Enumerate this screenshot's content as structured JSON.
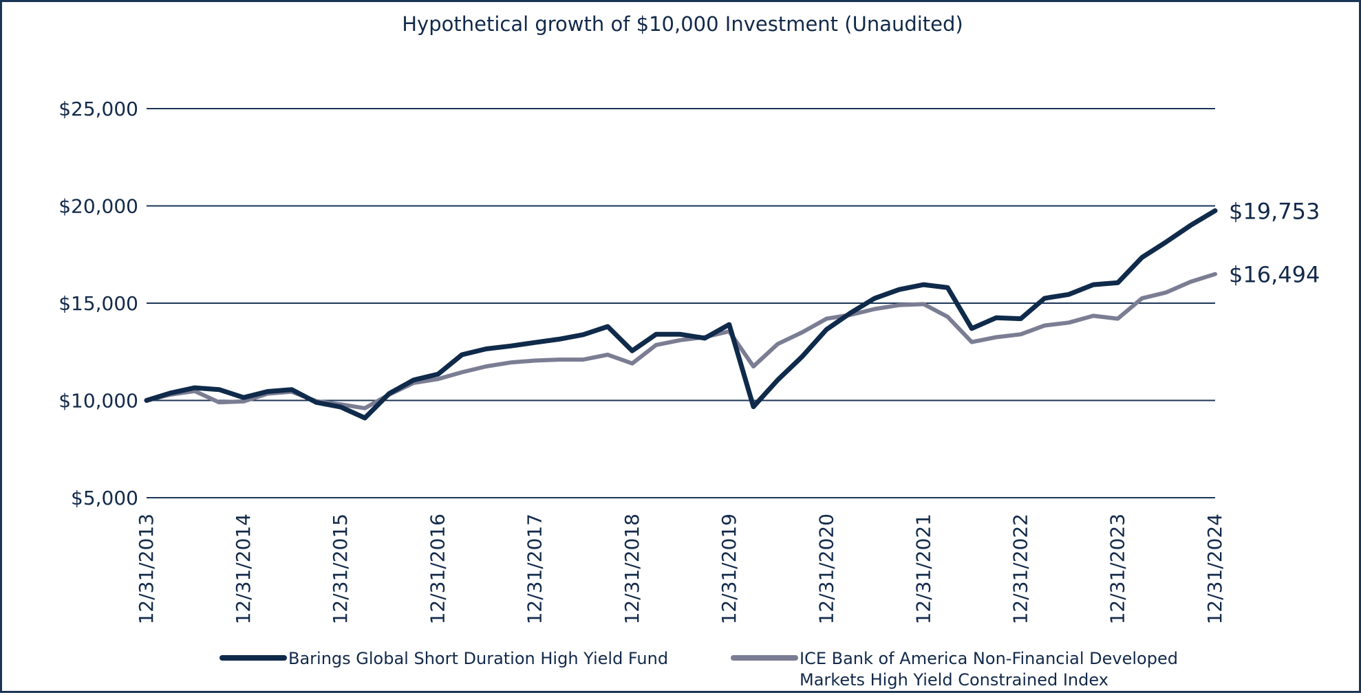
{
  "chart_data": {
    "type": "line",
    "title": "Hypothetical growth of $10,000 Investment (Unaudited)",
    "xlabel": "",
    "ylabel": "",
    "ylim": [
      5000,
      25000
    ],
    "y_ticks": [
      "$5,000",
      "$10,000",
      "$15,000",
      "$20,000",
      "$25,000"
    ],
    "y_tick_values": [
      5000,
      10000,
      15000,
      20000,
      25000
    ],
    "x_ticks": [
      "12/31/2013",
      "12/31/2014",
      "12/31/2015",
      "12/31/2016",
      "12/31/2017",
      "12/31/2018",
      "12/31/2019",
      "12/31/2020",
      "12/31/2021",
      "12/31/2022",
      "12/31/2023",
      "12/31/2024"
    ],
    "grid": true,
    "legend_position": "bottom",
    "series": [
      {
        "name": "Barings Global Short Duration High Yield Fund",
        "color": "#0f2a4a",
        "end_label": "$19,753",
        "values": [
          [
            "12/31/2013",
            10000
          ],
          [
            "3/31/2014",
            10380
          ],
          [
            "6/30/2014",
            10650
          ],
          [
            "9/30/2014",
            10560
          ],
          [
            "12/31/2014",
            10150
          ],
          [
            "3/31/2015",
            10460
          ],
          [
            "6/30/2015",
            10560
          ],
          [
            "9/30/2015",
            9900
          ],
          [
            "12/31/2015",
            9660
          ],
          [
            "3/31/2016",
            9100
          ],
          [
            "6/30/2016",
            10350
          ],
          [
            "9/30/2016",
            11050
          ],
          [
            "12/31/2016",
            11350
          ],
          [
            "3/31/2017",
            12350
          ],
          [
            "6/30/2017",
            12650
          ],
          [
            "9/30/2017",
            12800
          ],
          [
            "12/31/2017",
            12980
          ],
          [
            "3/31/2018",
            13150
          ],
          [
            "6/30/2018",
            13380
          ],
          [
            "9/30/2018",
            13800
          ],
          [
            "12/31/2018",
            12550
          ],
          [
            "3/31/2019",
            13400
          ],
          [
            "6/30/2019",
            13400
          ],
          [
            "9/30/2019",
            13200
          ],
          [
            "12/31/2019",
            13900
          ],
          [
            "3/31/2020",
            9680
          ],
          [
            "6/30/2020",
            11050
          ],
          [
            "9/30/2020",
            12250
          ],
          [
            "12/31/2020",
            13650
          ],
          [
            "3/31/2021",
            14500
          ],
          [
            "6/30/2021",
            15250
          ],
          [
            "9/30/2021",
            15700
          ],
          [
            "12/31/2021",
            15950
          ],
          [
            "3/31/2022",
            15800
          ],
          [
            "6/30/2022",
            13700
          ],
          [
            "9/30/2022",
            14250
          ],
          [
            "12/31/2022",
            14200
          ],
          [
            "3/31/2023",
            15250
          ],
          [
            "6/30/2023",
            15450
          ],
          [
            "9/30/2023",
            15950
          ],
          [
            "12/31/2023",
            16050
          ],
          [
            "3/31/2024",
            17350
          ],
          [
            "6/30/2024",
            18150
          ],
          [
            "9/30/2024",
            19000
          ],
          [
            "12/31/2024",
            19753
          ]
        ]
      },
      {
        "name": "ICE Bank of America Non-Financial Developed Markets High Yield Constrained Index",
        "color": "#7b7d93",
        "end_label": "$16,494",
        "values": [
          [
            "12/31/2013",
            10000
          ],
          [
            "3/31/2014",
            10300
          ],
          [
            "6/30/2014",
            10480
          ],
          [
            "9/30/2014",
            9900
          ],
          [
            "12/31/2014",
            9950
          ],
          [
            "3/31/2015",
            10350
          ],
          [
            "6/30/2015",
            10450
          ],
          [
            "9/30/2015",
            9960
          ],
          [
            "12/31/2015",
            9800
          ],
          [
            "3/31/2016",
            9600
          ],
          [
            "6/30/2016",
            10300
          ],
          [
            "9/30/2016",
            10900
          ],
          [
            "12/31/2016",
            11100
          ],
          [
            "3/31/2017",
            11450
          ],
          [
            "6/30/2017",
            11750
          ],
          [
            "9/30/2017",
            11950
          ],
          [
            "12/31/2017",
            12050
          ],
          [
            "3/31/2018",
            12100
          ],
          [
            "6/30/2018",
            12100
          ],
          [
            "9/30/2018",
            12350
          ],
          [
            "12/31/2018",
            11900
          ],
          [
            "3/31/2019",
            12850
          ],
          [
            "6/30/2019",
            13100
          ],
          [
            "9/30/2019",
            13250
          ],
          [
            "12/31/2019",
            13550
          ],
          [
            "3/31/2020",
            11750
          ],
          [
            "6/30/2020",
            12900
          ],
          [
            "9/30/2020",
            13500
          ],
          [
            "12/31/2020",
            14200
          ],
          [
            "3/31/2021",
            14400
          ],
          [
            "6/30/2021",
            14700
          ],
          [
            "9/30/2021",
            14900
          ],
          [
            "12/31/2021",
            14950
          ],
          [
            "3/31/2022",
            14300
          ],
          [
            "6/30/2022",
            13000
          ],
          [
            "9/30/2022",
            13250
          ],
          [
            "12/31/2022",
            13400
          ],
          [
            "3/31/2023",
            13850
          ],
          [
            "6/30/2023",
            14000
          ],
          [
            "9/30/2023",
            14350
          ],
          [
            "12/31/2023",
            14200
          ],
          [
            "3/31/2024",
            15250
          ],
          [
            "6/30/2024",
            15550
          ],
          [
            "9/30/2024",
            16100
          ],
          [
            "12/31/2024",
            16494
          ]
        ]
      }
    ]
  }
}
